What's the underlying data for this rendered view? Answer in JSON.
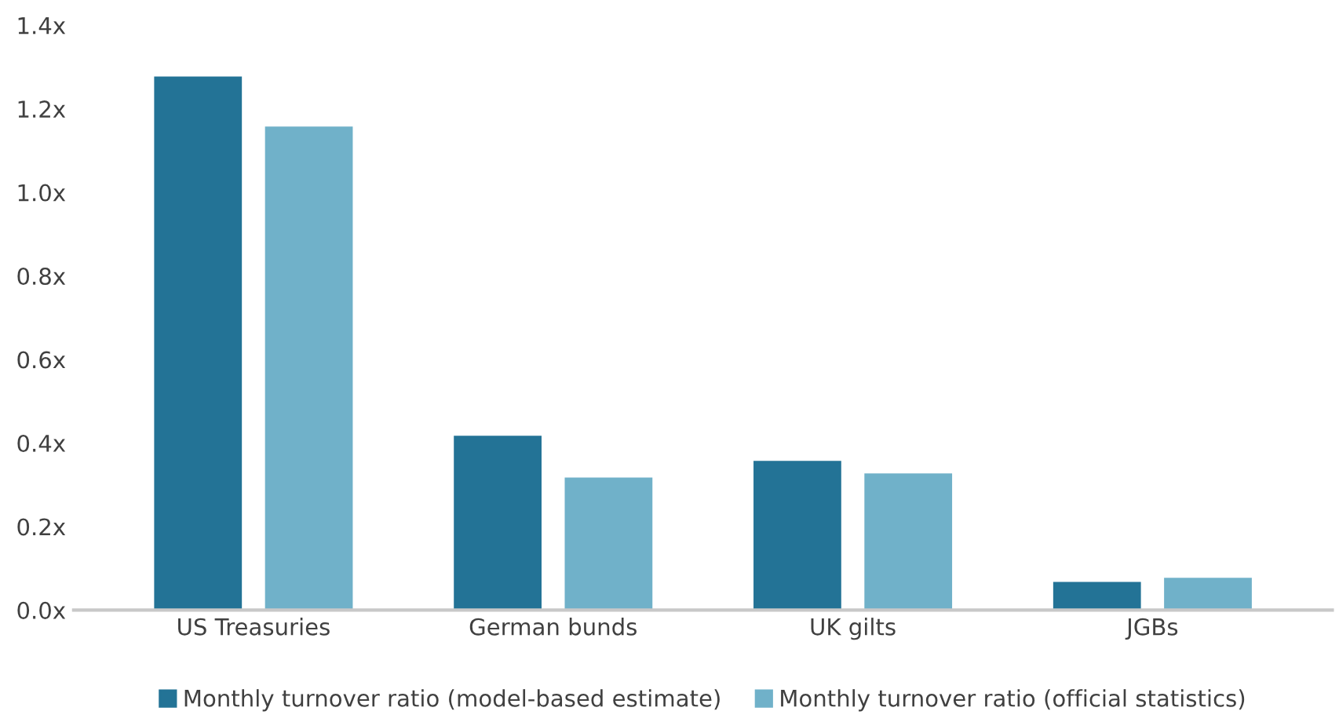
{
  "chart_data": {
    "type": "bar",
    "categories": [
      "US Treasuries",
      "German bunds",
      "UK gilts",
      "JGBs"
    ],
    "series": [
      {
        "name": "Monthly turnover ratio (model-based estimate)",
        "color": "#237396",
        "values": [
          1.28,
          0.42,
          0.36,
          0.07
        ]
      },
      {
        "name": "Monthly turnover ratio (official statistics)",
        "color": "#70b1c9",
        "values": [
          1.16,
          0.32,
          0.33,
          0.08
        ]
      }
    ],
    "ylim": [
      0,
      1.4
    ],
    "yticks": [
      {
        "value": 0,
        "label": "0.0x"
      },
      {
        "value": 0.2,
        "label": "0.2x"
      },
      {
        "value": 0.4,
        "label": "0.4x"
      },
      {
        "value": 0.6,
        "label": "0.6x"
      },
      {
        "value": 0.8,
        "label": "0.8x"
      },
      {
        "value": 1.0,
        "label": "1.0x"
      },
      {
        "value": 1.2,
        "label": "1.2x"
      },
      {
        "value": 1.4,
        "label": "1.4x"
      }
    ],
    "grid": false,
    "legend": "bottom"
  }
}
